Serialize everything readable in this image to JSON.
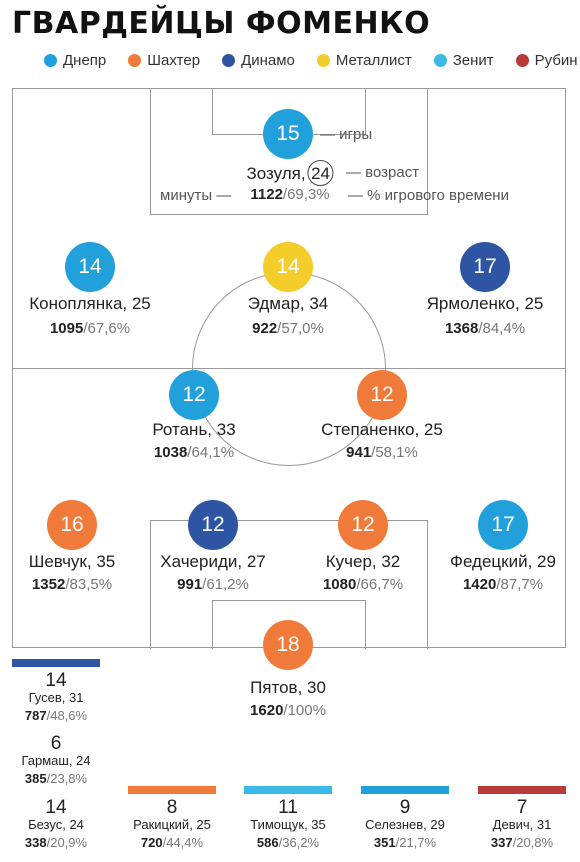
{
  "title": "ГВАРДЕЙЦЫ ФОМЕНКО",
  "legend": [
    {
      "label": "Днепр",
      "color": "#22a0dc"
    },
    {
      "label": "Шахтер",
      "color": "#f07a3a"
    },
    {
      "label": "Динамо",
      "color": "#2e55a4"
    },
    {
      "label": "Металлист",
      "color": "#f5cd2a"
    },
    {
      "label": "Зенит",
      "color": "#3ab8e6"
    },
    {
      "label": "Рубин",
      "color": "#b83a3a"
    }
  ],
  "annotations": {
    "games": "— игры",
    "age": "— возраст",
    "minutes": "минуты —",
    "percent": "— % игрового времени"
  },
  "players": [
    {
      "id": "zozulya",
      "games": "15",
      "name": "Зозуля,",
      "age": "24",
      "minutes": "1122",
      "percent": "/69,3%",
      "club": "dnipro"
    },
    {
      "id": "konoplyanka",
      "games": "14",
      "name": "Коноплянка, 25",
      "minutes": "1095",
      "percent": "/67,6%",
      "club": "dnipro"
    },
    {
      "id": "edmar",
      "games": "14",
      "name": "Эдмар, 34",
      "minutes": "922",
      "percent": "/57,0%",
      "club": "metalist"
    },
    {
      "id": "yarmolenko",
      "games": "17",
      "name": "Ярмоленко, 25",
      "minutes": "1368",
      "percent": "/84,4%",
      "club": "dynamo"
    },
    {
      "id": "rotan",
      "games": "12",
      "name": "Ротань, 33",
      "minutes": "1038",
      "percent": "/64,1%",
      "club": "dnipro"
    },
    {
      "id": "stepanenko",
      "games": "12",
      "name": "Степаненко, 25",
      "minutes": "941",
      "percent": "/58,1%",
      "club": "shakhtar"
    },
    {
      "id": "shevchuk",
      "games": "16",
      "name": "Шевчук, 35",
      "minutes": "1352",
      "percent": "/83,5%",
      "club": "shakhtar"
    },
    {
      "id": "khacheridi",
      "games": "12",
      "name": "Хачериди, 27",
      "minutes": "991",
      "percent": "/61,2%",
      "club": "dynamo"
    },
    {
      "id": "kucher",
      "games": "12",
      "name": "Кучер, 32",
      "minutes": "1080",
      "percent": "/66,7%",
      "club": "shakhtar"
    },
    {
      "id": "fedetskiy",
      "games": "17",
      "name": "Федецкий, 29",
      "minutes": "1420",
      "percent": "/87,7%",
      "club": "dnipro"
    },
    {
      "id": "pyatov",
      "games": "18",
      "name": "Пятов, 30",
      "minutes": "1620",
      "percent": "/100%",
      "club": "shakhtar"
    }
  ],
  "subs": [
    {
      "id": "gusev",
      "games": "14",
      "name": "Гусев, 31",
      "minutes": "787",
      "percent": "/48,6%",
      "bar_color": "#2e55a4"
    },
    {
      "id": "garmash",
      "games": "6",
      "name": "Гармаш, 24",
      "minutes": "385",
      "percent": "/23,8%",
      "bar_color": ""
    },
    {
      "id": "bezus",
      "games": "14",
      "name": "Безус, 24",
      "minutes": "338",
      "percent": "/20,9%",
      "bar_color": ""
    },
    {
      "id": "rakitskiy",
      "games": "8",
      "name": "Ракицкий, 25",
      "minutes": "720",
      "percent": "/44,4%",
      "bar_color": "#f07a3a"
    },
    {
      "id": "timoshchuk",
      "games": "11",
      "name": "Тимощук, 35",
      "minutes": "586",
      "percent": "/36,2%",
      "bar_color": "#3ab8e6"
    },
    {
      "id": "seleznev",
      "games": "9",
      "name": "Селезнев, 29",
      "minutes": "351",
      "percent": "/21,7%",
      "bar_color": "#22a0dc"
    },
    {
      "id": "devich",
      "games": "7",
      "name": "Девич, 31",
      "minutes": "337",
      "percent": "/20,8%",
      "bar_color": "#b83a3a"
    }
  ]
}
